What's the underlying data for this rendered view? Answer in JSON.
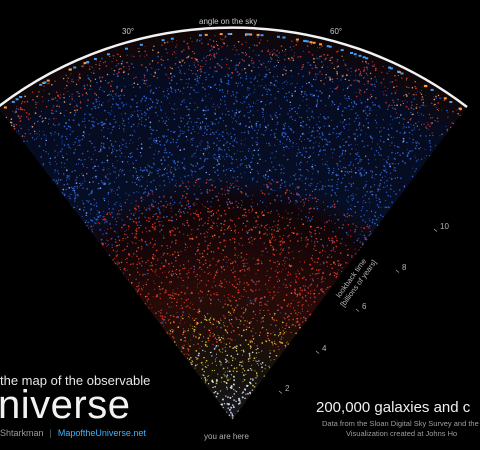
{
  "title": {
    "line1": "the map of the observable",
    "line2": "niverse"
  },
  "credits": {
    "author": "Shtarkman",
    "separator": "|",
    "site": "MapoftheUniverse.net"
  },
  "headline": "200,000 galaxies and c",
  "subtext": {
    "line1": "Data from the Sloan Digital Sky Survey and the",
    "line2": "Visualization created at Johns Ho"
  },
  "axes": {
    "angle_title": "angle on the sky",
    "angle_ticks": [
      "30°",
      "60°"
    ],
    "lookback_title_line1": "lookback time",
    "lookback_title_line2": "[billions of years]",
    "lookback_ticks": [
      "2",
      "4",
      "6",
      "8",
      "10"
    ],
    "origin_label": "you are here"
  },
  "colors": {
    "near": "#d8e6f2",
    "yellow": "#e8c640",
    "red": "#e23b2a",
    "blue": "#2d63d6",
    "arc": "#ffffff",
    "link": "#3fb4ff"
  }
}
